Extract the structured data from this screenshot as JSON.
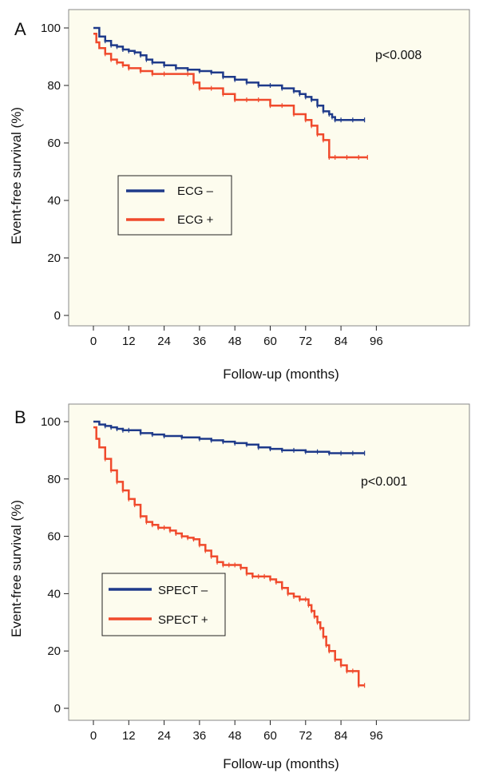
{
  "colors": {
    "background": "#fdfcee",
    "negative": "#1e3a8a",
    "positive": "#f04a2c"
  },
  "chart_data": [
    {
      "type": "line",
      "panel": "A",
      "xlabel": "Follow-up (months)",
      "ylabel": "Event-free survival (%)",
      "xlim": [
        0,
        96
      ],
      "ylim": [
        0,
        100
      ],
      "xticks": [
        "0",
        "12",
        "24",
        "36",
        "48",
        "60",
        "72",
        "84",
        "96"
      ],
      "yticks": [
        "0",
        "20",
        "40",
        "60",
        "80",
        "100"
      ],
      "annotation": "p<0.008",
      "legend_position": "center-left",
      "series": [
        {
          "name": "ECG –",
          "color": "#1e3a8a",
          "x": [
            0,
            2,
            4,
            6,
            8,
            10,
            12,
            14,
            16,
            18,
            20,
            24,
            28,
            32,
            36,
            40,
            44,
            48,
            52,
            56,
            60,
            64,
            68,
            70,
            72,
            74,
            76,
            78,
            80,
            81,
            82,
            84,
            88,
            92
          ],
          "y": [
            100,
            97,
            95.5,
            94,
            93.5,
            92.5,
            92,
            91.5,
            90.5,
            89,
            88,
            87,
            86,
            85.5,
            85,
            84.5,
            83,
            82,
            81,
            80,
            80,
            79,
            78,
            77,
            76,
            75,
            73,
            71,
            70,
            69,
            68,
            68,
            68,
            68
          ]
        },
        {
          "name": "ECG +",
          "color": "#f04a2c",
          "x": [
            0,
            1,
            2,
            4,
            6,
            8,
            10,
            12,
            16,
            20,
            24,
            32,
            34,
            36,
            40,
            44,
            48,
            52,
            56,
            60,
            64,
            68,
            72,
            74,
            76,
            78,
            80,
            82,
            86,
            90,
            93
          ],
          "y": [
            98,
            95,
            93,
            91,
            89,
            88,
            87,
            86,
            85,
            84,
            84,
            84,
            81,
            79,
            79,
            77,
            75,
            75,
            75,
            73,
            73,
            70,
            68,
            66,
            63,
            61,
            55,
            55,
            55,
            55,
            55
          ]
        }
      ]
    },
    {
      "type": "line",
      "panel": "B",
      "xlabel": "Follow-up (months)",
      "ylabel": "Event-free survival (%)",
      "xlim": [
        0,
        96
      ],
      "ylim": [
        0,
        100
      ],
      "xticks": [
        "0",
        "12",
        "24",
        "36",
        "48",
        "60",
        "72",
        "84",
        "96"
      ],
      "yticks": [
        "0",
        "20",
        "40",
        "60",
        "80",
        "100"
      ],
      "annotation": "p<0.001",
      "legend_position": "lower-left",
      "series": [
        {
          "name": "SPECT –",
          "color": "#1e3a8a",
          "x": [
            0,
            2,
            4,
            6,
            8,
            10,
            12,
            16,
            20,
            24,
            30,
            36,
            40,
            44,
            48,
            52,
            56,
            60,
            64,
            68,
            72,
            76,
            80,
            84,
            88,
            92
          ],
          "y": [
            100,
            99,
            98.5,
            98,
            97.5,
            97,
            97,
            96,
            95.5,
            95,
            94.5,
            94,
            93.5,
            93,
            92.5,
            92,
            91,
            90.5,
            90,
            90,
            89.5,
            89.5,
            89,
            89,
            89,
            89
          ]
        },
        {
          "name": "SPECT +",
          "color": "#f04a2c",
          "x": [
            0,
            1,
            2,
            4,
            6,
            8,
            10,
            12,
            14,
            16,
            18,
            20,
            22,
            24,
            26,
            28,
            30,
            32,
            34,
            36,
            38,
            40,
            42,
            44,
            46,
            48,
            50,
            52,
            54,
            56,
            58,
            60,
            62,
            64,
            66,
            68,
            70,
            72,
            73,
            74,
            75,
            76,
            77,
            78,
            79,
            80,
            82,
            84,
            86,
            88,
            90,
            92
          ],
          "y": [
            98,
            94,
            91,
            87,
            83,
            79,
            76,
            73,
            71,
            67,
            65,
            64,
            63,
            63,
            62,
            61,
            60,
            59.5,
            59,
            57,
            55,
            53,
            51,
            50,
            50,
            50,
            49,
            47,
            46,
            46,
            46,
            45,
            44,
            42,
            40,
            39,
            38,
            38,
            36,
            34,
            32,
            30,
            28,
            25,
            22,
            20,
            17,
            15,
            13,
            13,
            8,
            8
          ]
        }
      ]
    }
  ]
}
